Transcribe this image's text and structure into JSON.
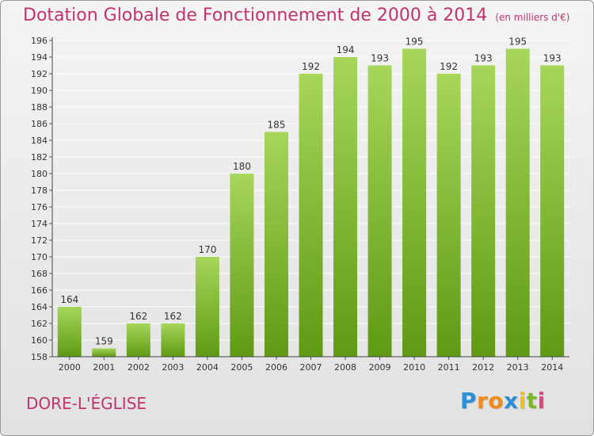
{
  "commune": "DORE-L'ÉGLISE",
  "brand": {
    "letters": [
      "P",
      "r",
      "o",
      "x",
      "i",
      "t",
      "i"
    ],
    "colors": [
      "#2a8fd6",
      "#f08c1c",
      "#f08c1c",
      "#2a8fd6",
      "#f0c01c",
      "#7ab829",
      "#e0457b"
    ]
  },
  "colors": {
    "title": "#c0336f",
    "bar_light": "#a6d65a",
    "bar_dark": "#5f9a14"
  },
  "chart_data": {
    "type": "bar",
    "title": "Dotation Globale de Fonctionnement de 2000 à 2014",
    "subtitle": "(en milliers d'€)",
    "categories": [
      "2000",
      "2001",
      "2002",
      "2003",
      "2004",
      "2005",
      "2006",
      "2007",
      "2008",
      "2009",
      "2010",
      "2011",
      "2012",
      "2013",
      "2014"
    ],
    "values": [
      164,
      159,
      162,
      162,
      170,
      180,
      185,
      192,
      194,
      193,
      195,
      192,
      193,
      195,
      193
    ],
    "data_labels": [
      "164",
      "159",
      "162",
      "162",
      "170",
      "180",
      "185",
      "192",
      "194",
      "193",
      "195",
      "192",
      "193",
      "195",
      "193"
    ],
    "ylim": [
      158,
      196
    ],
    "yticks": [
      "158",
      "160",
      "162",
      "164",
      "166",
      "168",
      "170",
      "172",
      "174",
      "176",
      "178",
      "180",
      "182",
      "184",
      "186",
      "188",
      "190",
      "192",
      "194",
      "196"
    ],
    "grid": true
  }
}
